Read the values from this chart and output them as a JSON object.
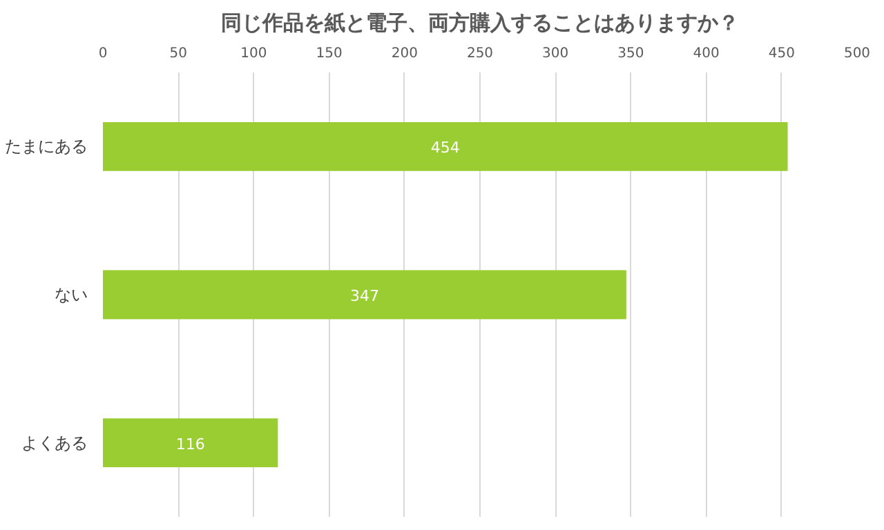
{
  "chart_data": {
    "type": "bar",
    "orientation": "horizontal",
    "title": "同じ作品を紙と電子、両方購入することはありますか？",
    "categories": [
      "たまにある",
      "ない",
      "よくある"
    ],
    "values": [
      454,
      347,
      116
    ],
    "color": "#9acd32",
    "xlim": [
      0,
      500
    ],
    "xticks": [
      0,
      50,
      100,
      150,
      200,
      250,
      300,
      350,
      400,
      450,
      500
    ],
    "grid": "x",
    "data_labels": true
  }
}
